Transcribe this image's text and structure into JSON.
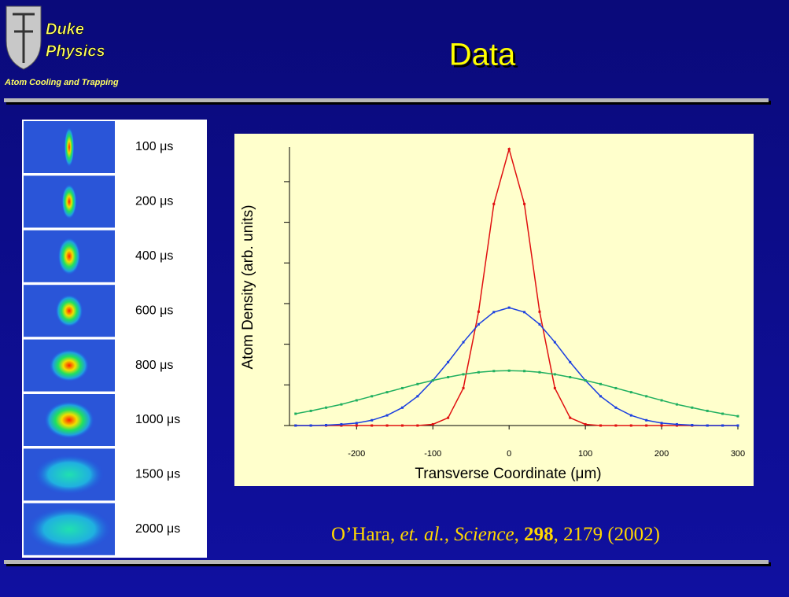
{
  "header": {
    "logo_line1": "Duke",
    "logo_line2": "Physics",
    "logo_subtitle": "Atom Cooling and Trapping",
    "title": "Data"
  },
  "images": {
    "labels": [
      "100 μs",
      "200 μs",
      "400 μs",
      "600 μs",
      "800 μs",
      "1000 μs",
      "1500 μs",
      "2000 μs"
    ]
  },
  "citation": [
    "O’Hara, ",
    "et. al., Science",
    ", ",
    "298",
    ", 2179 (2002)"
  ],
  "chart_data": {
    "type": "line",
    "xlabel": "Transverse Coordinate (μm)",
    "ylabel": "Atom Density (arb. units)",
    "xlim": [
      -288,
      300
    ],
    "xticks": [
      -200,
      -100,
      0,
      100,
      200,
      300
    ],
    "ylim": [
      0,
      6.85
    ],
    "yticks": [
      0,
      1,
      2,
      3,
      4,
      5,
      6
    ],
    "x": [
      -280,
      -260,
      -240,
      -220,
      -200,
      -180,
      -160,
      -140,
      -120,
      -100,
      -80,
      -60,
      -40,
      -20,
      0,
      20,
      40,
      60,
      80,
      100,
      120,
      140,
      160,
      180,
      200,
      220,
      240,
      260,
      280,
      300
    ],
    "series": [
      {
        "color": "#e01010",
        "values": [
          0,
          0,
          0,
          0,
          0,
          0,
          0,
          0,
          0,
          0.03,
          0.19,
          0.92,
          2.8,
          5.45,
          6.8,
          5.45,
          2.8,
          0.92,
          0.19,
          0.03,
          0,
          0,
          0,
          0,
          0,
          0,
          0,
          0,
          0,
          0
        ]
      },
      {
        "color": "#1a3fe0",
        "values": [
          0,
          0,
          0.01,
          0.03,
          0.06,
          0.13,
          0.25,
          0.44,
          0.72,
          1.11,
          1.56,
          2.05,
          2.49,
          2.79,
          2.9,
          2.79,
          2.49,
          2.05,
          1.56,
          1.11,
          0.72,
          0.44,
          0.25,
          0.13,
          0.06,
          0.03,
          0.01,
          0,
          0,
          0
        ]
      },
      {
        "color": "#20b060",
        "values": [
          0.29,
          0.36,
          0.44,
          0.52,
          0.62,
          0.72,
          0.82,
          0.92,
          1.02,
          1.11,
          1.19,
          1.26,
          1.31,
          1.34,
          1.35,
          1.34,
          1.31,
          1.26,
          1.19,
          1.11,
          1.02,
          0.92,
          0.82,
          0.72,
          0.62,
          0.52,
          0.44,
          0.36,
          0.29,
          0.23
        ]
      }
    ]
  }
}
